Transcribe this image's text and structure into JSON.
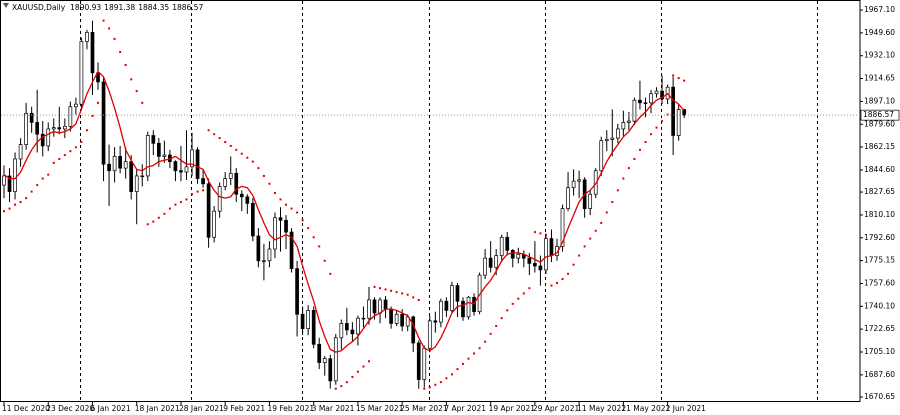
{
  "chart_data": {
    "type": "candlestick",
    "title": "XAUUSD,Daily",
    "categories": [
      "11 Dec 2020",
      null,
      null,
      null,
      null,
      null,
      null,
      null,
      "23 Dec 2020",
      null,
      null,
      null,
      null,
      null,
      null,
      null,
      "6 Jan 2021",
      null,
      null,
      null,
      null,
      null,
      null,
      null,
      "18 Jan 2021",
      null,
      null,
      null,
      null,
      null,
      null,
      null,
      "28 Jan 2021",
      null,
      null,
      null,
      null,
      null,
      null,
      null,
      "9 Feb 2021",
      null,
      null,
      null,
      null,
      null,
      null,
      null,
      "19 Feb 2021",
      null,
      null,
      null,
      null,
      null,
      null,
      null,
      "3 Mar 2021",
      null,
      null,
      null,
      null,
      null,
      null,
      null,
      "15 Mar 2021",
      null,
      null,
      null,
      null,
      null,
      null,
      null,
      "25 Mar 2021",
      null,
      null,
      null,
      null,
      null,
      null,
      null,
      "7 Apr 2021",
      null,
      null,
      null,
      null,
      null,
      null,
      null,
      "19 Apr 2021",
      null,
      null,
      null,
      null,
      null,
      null,
      null,
      "29 Apr 2021",
      null,
      null,
      null,
      null,
      null,
      null,
      null,
      "11 May 2021",
      null,
      null,
      null,
      null,
      null,
      null,
      null,
      "21 May 2021",
      null,
      null,
      null,
      null,
      null,
      null,
      null,
      "2 Jun 2021",
      null,
      null,
      null
    ],
    "open": [
      1833,
      1840,
      1828,
      1853,
      1864,
      1888,
      1881,
      1872,
      1863,
      1876,
      1877,
      1876,
      1878,
      1893,
      1895,
      1943,
      1950,
      1919,
      1912,
      1849,
      1844,
      1855,
      1846,
      1851,
      1828,
      1840,
      1840,
      1871,
      1865,
      1855,
      1856,
      1851,
      1844,
      1843,
      1847,
      1860,
      1838,
      1834,
      1793,
      1813,
      1832,
      1838,
      1842,
      1826,
      1824,
      1819,
      1794,
      1775,
      1775,
      1784,
      1808,
      1806,
      1797,
      1769,
      1734,
      1723,
      1737,
      1711,
      1697,
      1700,
      1683,
      1716,
      1727,
      1722,
      1719,
      1731,
      1731,
      1745,
      1735,
      1745,
      1738,
      1727,
      1734,
      1725,
      1732,
      1712,
      1684,
      1708,
      1729,
      1728,
      1744,
      1737,
      1756,
      1744,
      1732,
      1747,
      1736,
      1764,
      1777,
      1770,
      1779,
      1793,
      1783,
      1777,
      1780,
      1777,
      1773,
      1771,
      1768,
      1792,
      1779,
      1786,
      1815,
      1831,
      1836,
      1837,
      1815,
      1826,
      1844,
      1867,
      1868,
      1869,
      1876,
      1881,
      1882,
      1898,
      1896,
      1896,
      1903,
      1905,
      1899,
      1908,
      1871,
      1890.93
    ],
    "high": [
      1848,
      1846,
      1858,
      1869,
      1896,
      1893,
      1906,
      1882,
      1881,
      1884,
      1893,
      1884,
      1897,
      1900,
      1946,
      1952,
      1959,
      1927,
      1916,
      1864,
      1862,
      1863,
      1862,
      1856,
      1845,
      1849,
      1874,
      1875,
      1869,
      1867,
      1860,
      1852,
      1863,
      1875,
      1873,
      1862,
      1845,
      1838,
      1817,
      1835,
      1843,
      1855,
      1846,
      1829,
      1826,
      1823,
      1800,
      1788,
      1790,
      1812,
      1816,
      1810,
      1800,
      1775,
      1740,
      1741,
      1740,
      1716,
      1702,
      1703,
      1719,
      1730,
      1739,
      1728,
      1733,
      1740,
      1755,
      1747,
      1747,
      1748,
      1740,
      1737,
      1738,
      1734,
      1733,
      1714,
      1710,
      1733,
      1736,
      1746,
      1747,
      1759,
      1758,
      1747,
      1748,
      1750,
      1766,
      1784,
      1790,
      1784,
      1795,
      1797,
      1784,
      1785,
      1783,
      1781,
      1790,
      1779,
      1795,
      1799,
      1792,
      1818,
      1843,
      1845,
      1844,
      1839,
      1829,
      1846,
      1870,
      1875,
      1891,
      1880,
      1890,
      1889,
      1900,
      1913,
      1900,
      1906,
      1908,
      1917,
      1910,
      1916,
      1895,
      1891.38
    ],
    "low": [
      1823,
      1820,
      1822,
      1847,
      1860,
      1873,
      1858,
      1855,
      1859,
      1870,
      1872,
      1869,
      1874,
      1887,
      1891,
      1937,
      1902,
      1906,
      1836,
      1817,
      1835,
      1842,
      1838,
      1822,
      1803,
      1832,
      1836,
      1856,
      1847,
      1850,
      1846,
      1836,
      1836,
      1837,
      1840,
      1834,
      1831,
      1785,
      1789,
      1808,
      1829,
      1833,
      1820,
      1813,
      1811,
      1790,
      1770,
      1760,
      1770,
      1777,
      1782,
      1784,
      1766,
      1717,
      1718,
      1718,
      1708,
      1692,
      1687,
      1677,
      1680,
      1707,
      1718,
      1713,
      1710,
      1724,
      1726,
      1730,
      1727,
      1731,
      1723,
      1725,
      1721,
      1721,
      1705,
      1677,
      1678,
      1705,
      1720,
      1724,
      1732,
      1735,
      1732,
      1729,
      1730,
      1733,
      1734,
      1761,
      1766,
      1764,
      1774,
      1779,
      1770,
      1773,
      1770,
      1764,
      1766,
      1756,
      1765,
      1774,
      1775,
      1782,
      1813,
      1825,
      1823,
      1808,
      1810,
      1823,
      1840,
      1859,
      1855,
      1865,
      1870,
      1875,
      1879,
      1891,
      1885,
      1888,
      1900,
      1895,
      1895,
      1856,
      1867,
      1884.35
    ],
    "close": [
      1840,
      1828,
      1853,
      1864,
      1888,
      1881,
      1872,
      1863,
      1876,
      1877,
      1876,
      1878,
      1893,
      1895,
      1943,
      1950,
      1919,
      1912,
      1849,
      1844,
      1855,
      1846,
      1851,
      1828,
      1840,
      1840,
      1871,
      1865,
      1855,
      1856,
      1851,
      1844,
      1843,
      1847,
      1860,
      1838,
      1834,
      1793,
      1813,
      1832,
      1838,
      1842,
      1826,
      1824,
      1819,
      1794,
      1775,
      1775,
      1784,
      1808,
      1806,
      1797,
      1769,
      1734,
      1723,
      1737,
      1711,
      1697,
      1700,
      1683,
      1716,
      1727,
      1722,
      1719,
      1731,
      1731,
      1745,
      1735,
      1745,
      1738,
      1727,
      1734,
      1725,
      1732,
      1712,
      1684,
      1708,
      1729,
      1728,
      1744,
      1737,
      1756,
      1744,
      1732,
      1747,
      1736,
      1764,
      1777,
      1770,
      1779,
      1793,
      1783,
      1777,
      1780,
      1777,
      1773,
      1771,
      1768,
      1792,
      1779,
      1786,
      1815,
      1831,
      1836,
      1837,
      1815,
      1826,
      1844,
      1867,
      1868,
      1869,
      1876,
      1881,
      1882,
      1898,
      1896,
      1896,
      1903,
      1905,
      1899,
      1908,
      1871,
      1890.93,
      1886.57
    ],
    "indicators": [
      {
        "type": "line",
        "color": "#e00000",
        "values": [
          1841,
          1838,
          1838,
          1843,
          1852,
          1860,
          1866,
          1870,
          1872,
          1874,
          1873,
          1874,
          1876,
          1880,
          1891,
          1903,
          1912,
          1920,
          1916,
          1905,
          1892,
          1877,
          1860,
          1852,
          1845,
          1844,
          1847,
          1848,
          1851,
          1852,
          1853,
          1855,
          1852,
          1849,
          1849,
          1847,
          1845,
          1836,
          1829,
          1824,
          1823,
          1824,
          1830,
          1832,
          1831,
          1825,
          1814,
          1804,
          1795,
          1791,
          1793,
          1795,
          1793,
          1786,
          1771,
          1757,
          1744,
          1729,
          1717,
          1707,
          1705,
          1706,
          1710,
          1713,
          1717,
          1723,
          1729,
          1733,
          1735,
          1738,
          1738,
          1737,
          1735,
          1733,
          1726,
          1716,
          1708,
          1706,
          1709,
          1716,
          1725,
          1735,
          1740,
          1741,
          1743,
          1742,
          1749,
          1755,
          1760,
          1767,
          1775,
          1780,
          1781,
          1781,
          1780,
          1778,
          1776,
          1774,
          1778,
          1779,
          1781,
          1789,
          1800,
          1810,
          1820,
          1826,
          1829,
          1834,
          1842,
          1851,
          1858,
          1864,
          1870,
          1874,
          1880,
          1885,
          1889,
          1894,
          1898,
          1900,
          1903,
          1898,
          1895,
          1890
        ]
      },
      {
        "type": "dots",
        "color": "#e00000",
        "values": [
          1813,
          1815,
          1818,
          1820,
          1823,
          1828,
          1833,
          1838,
          1841,
          1850,
          1853,
          1856,
          1859,
          1862,
          1866,
          1875,
          1886,
          1896,
          1959,
          1953,
          1945,
          1935,
          1925,
          1914,
          1905,
          1896,
          1803,
          1805,
          1808,
          1811,
          1815,
          1818,
          1820,
          1822,
          1826,
          1828,
          1829,
          1875,
          1872,
          1869,
          1866,
          1863,
          1860,
          1857,
          1854,
          1851,
          1846,
          1840,
          1834,
          1827,
          1822,
          1818,
          1815,
          1812,
          1806,
          1800,
          1793,
          1786,
          1775,
          1765,
          1677,
          1679,
          1682,
          1686,
          1690,
          1694,
          1698,
          1755,
          1754,
          1753,
          1752,
          1751,
          1750,
          1749,
          1747,
          1745,
          1677,
          1678,
          1680,
          1682,
          1685,
          1688,
          1692,
          1696,
          1700,
          1704,
          1708,
          1713,
          1719,
          1725,
          1731,
          1737,
          1742,
          1746,
          1750,
          1754,
          1797,
          1796,
          1795,
          1756,
          1758,
          1761,
          1765,
          1772,
          1779,
          1786,
          1792,
          1798,
          1804,
          1812,
          1820,
          1829,
          1838,
          1846,
          1853,
          1860,
          1866,
          1872,
          1877,
          1882,
          1887,
          1917,
          1915,
          1913
        ]
      }
    ],
    "up_color": "#ffffff",
    "down_color": "#000000",
    "ylim": [
      1666.8,
      1974.8
    ],
    "yticks": [
      {
        "value": 1967.1,
        "label": "1967.10"
      },
      {
        "value": 1949.6,
        "label": "1949.60"
      },
      {
        "value": 1932.1,
        "label": "1932.10"
      },
      1914.65,
      {
        "value": 1897.1,
        "label": "1897.10"
      },
      {
        "value": 1879.6,
        "label": "1879.60"
      },
      1862.15,
      {
        "value": 1844.6,
        "label": "1844.60"
      },
      1827.65,
      {
        "value": 1810.1,
        "label": "1810.10"
      },
      {
        "value": 1792.6,
        "label": "1792.60"
      },
      1775.15,
      {
        "value": 1757.6,
        "label": "1757.60"
      },
      {
        "value": 1740.1,
        "label": "1740.10"
      },
      1722.65,
      {
        "value": 1705.1,
        "label": "1705.10"
      },
      {
        "value": 1687.6,
        "label": "1687.60"
      },
      1670.65
    ]
  }
}
